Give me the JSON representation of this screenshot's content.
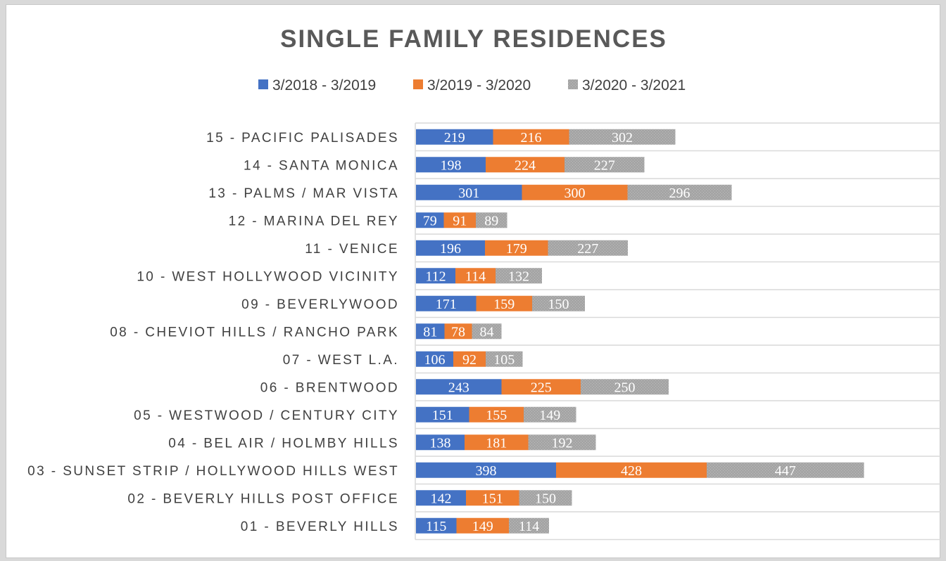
{
  "chart_data": {
    "type": "bar",
    "orientation": "horizontal",
    "stacked": true,
    "title": "SINGLE FAMILY RESIDENCES",
    "legend_position": "top",
    "grid": true,
    "categories": [
      "15 - PACIFIC PALISADES",
      "14 - SANTA MONICA",
      "13 - PALMS / MAR VISTA",
      "12 - MARINA DEL REY",
      "11 - VENICE",
      "10 - WEST HOLLYWOOD VICINITY",
      "09 - BEVERLYWOOD",
      "08 - CHEVIOT HILLS / RANCHO PARK",
      "07 - WEST L.A.",
      "06 - BRENTWOOD",
      "05 - WESTWOOD / CENTURY CITY",
      "04 - BEL AIR / HOLMBY HILLS",
      "03 - SUNSET STRIP / HOLLYWOOD HILLS WEST",
      "02 - BEVERLY HILLS POST OFFICE",
      "01 - BEVERLY HILLS"
    ],
    "series": [
      {
        "name": "3/2018 - 3/2019",
        "color": "#4472c4",
        "values": [
          219,
          198,
          301,
          79,
          196,
          112,
          171,
          81,
          106,
          243,
          151,
          138,
          398,
          142,
          115
        ]
      },
      {
        "name": "3/2019 - 3/2020",
        "color": "#ed7d31",
        "values": [
          216,
          224,
          300,
          91,
          179,
          114,
          159,
          78,
          92,
          225,
          155,
          181,
          428,
          151,
          149
        ]
      },
      {
        "name": "3/2020 - 3/2021",
        "color": "#a5a5a5",
        "pattern": "hatched",
        "values": [
          302,
          227,
          296,
          89,
          227,
          132,
          150,
          84,
          105,
          250,
          149,
          192,
          447,
          150,
          114
        ]
      }
    ],
    "xlim": [
      0,
      1450
    ]
  }
}
